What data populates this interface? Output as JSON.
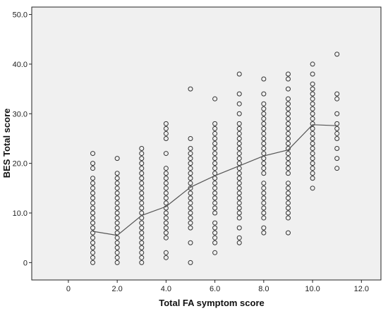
{
  "chart_data": {
    "type": "scatter",
    "title": "",
    "xlabel": "Total FA symptom score",
    "ylabel": "BES Total score",
    "xlim": [
      -1.5,
      12.8
    ],
    "ylim": [
      -3.5,
      51.5
    ],
    "x_ticks": [
      0,
      2,
      4,
      6,
      8,
      10,
      12
    ],
    "x_tick_labels": [
      "0",
      "2.0",
      "4.0",
      "6.0",
      "8.0",
      "10.0",
      "12.0"
    ],
    "y_ticks": [
      0,
      10,
      20,
      30,
      40,
      50
    ],
    "y_tick_labels": [
      "0",
      "10.0",
      "20.0",
      "30.0",
      "40.0",
      "50.0"
    ],
    "grid": false,
    "plot_background": "#f0f0f0",
    "point_color": "#333333",
    "line_color": "#555555",
    "points_by_x": [
      {
        "x": 1,
        "y": [
          0,
          1,
          2,
          3,
          4,
          5,
          6,
          7,
          8,
          9,
          10,
          11,
          12,
          13,
          14,
          15,
          16,
          17,
          19,
          20,
          22
        ]
      },
      {
        "x": 2,
        "y": [
          0,
          1,
          2,
          3,
          4,
          5,
          6,
          7,
          8,
          9,
          10,
          11,
          12,
          13,
          14,
          15,
          16,
          17,
          18,
          21
        ]
      },
      {
        "x": 3,
        "y": [
          0,
          1,
          2,
          3,
          4,
          5,
          6,
          7,
          8,
          9,
          10,
          11,
          12,
          13,
          14,
          15,
          16,
          17,
          18,
          19,
          20,
          21,
          22,
          23
        ]
      },
      {
        "x": 4,
        "y": [
          1,
          2,
          5,
          6,
          7,
          8,
          9,
          10,
          11,
          12,
          13,
          14,
          15,
          16,
          17,
          18,
          19,
          22,
          25,
          26,
          27,
          28
        ]
      },
      {
        "x": 5,
        "y": [
          0,
          4,
          7,
          8,
          9,
          10,
          11,
          12,
          13,
          14,
          15,
          16,
          17,
          18,
          19,
          20,
          21,
          22,
          23,
          25,
          35
        ]
      },
      {
        "x": 6,
        "y": [
          2,
          4,
          5,
          6,
          7,
          8,
          10,
          11,
          12,
          13,
          14,
          15,
          16,
          17,
          18,
          19,
          20,
          21,
          22,
          23,
          24,
          25,
          26,
          27,
          28,
          33
        ]
      },
      {
        "x": 7,
        "y": [
          4,
          5,
          7,
          9,
          10,
          11,
          12,
          13,
          14,
          15,
          16,
          17,
          18,
          19,
          20,
          21,
          22,
          23,
          24,
          25,
          26,
          27,
          28,
          30,
          32,
          34,
          38
        ]
      },
      {
        "x": 8,
        "y": [
          6,
          7,
          9,
          10,
          11,
          12,
          13,
          14,
          15,
          16,
          18,
          19,
          20,
          21,
          22,
          23,
          24,
          25,
          26,
          27,
          28,
          29,
          30,
          31,
          32,
          34,
          37
        ]
      },
      {
        "x": 9,
        "y": [
          6,
          9,
          10,
          11,
          12,
          13,
          14,
          15,
          16,
          18,
          19,
          20,
          21,
          22,
          23,
          24,
          25,
          26,
          27,
          28,
          29,
          30,
          31,
          32,
          33,
          35,
          37,
          38
        ]
      },
      {
        "x": 10,
        "y": [
          15,
          17,
          18,
          19,
          20,
          21,
          22,
          23,
          24,
          25,
          26,
          27,
          28,
          29,
          30,
          31,
          32,
          33,
          34,
          35,
          36,
          38,
          40
        ]
      },
      {
        "x": 11,
        "y": [
          19,
          21,
          23,
          25,
          26,
          27,
          28,
          30,
          33,
          34,
          42
        ]
      }
    ],
    "mean_line": {
      "x": [
        1,
        2,
        3,
        4,
        5,
        6,
        7,
        8,
        9,
        10,
        11
      ],
      "y": [
        6.3,
        5.5,
        9.5,
        11.3,
        15.2,
        17.5,
        19.5,
        21.5,
        22.7,
        27.8,
        27.6
      ]
    }
  }
}
